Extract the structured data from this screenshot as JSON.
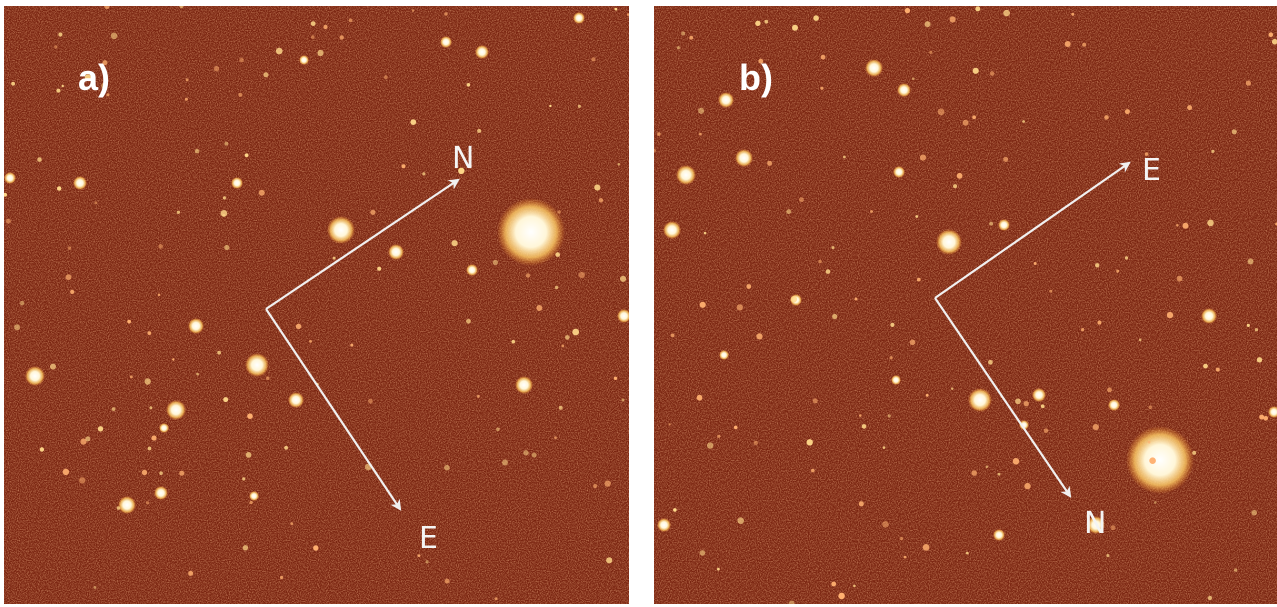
{
  "colors": {
    "sky_base": "#7a2410",
    "sky_dark": "#4a1206",
    "star_core": "#fff9e6",
    "star_halo": "#ffcc66",
    "arrow": "#f0f0f0"
  },
  "panels": [
    {
      "label": "a)",
      "compass": {
        "first_label": "N",
        "second_label": "E"
      }
    },
    {
      "label": "b)",
      "compass": {
        "first_label": "E",
        "second_label": "N"
      }
    }
  ]
}
